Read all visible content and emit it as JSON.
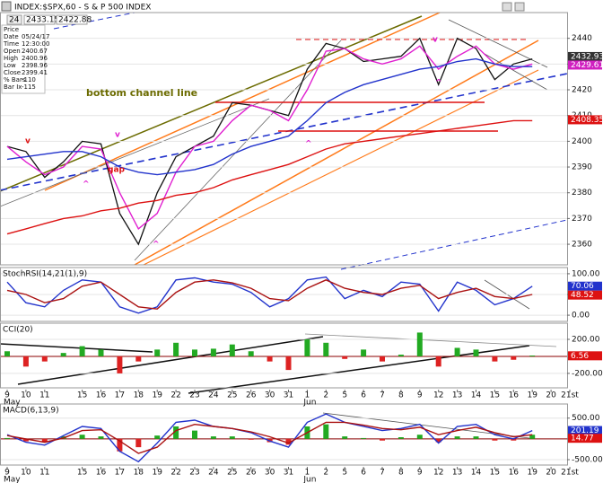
{
  "header": {
    "title": "INDEX:$SPX,60 - S & P 500 INDEX",
    "period": "24",
    "quotes": [
      2433.15,
      2422.88
    ]
  },
  "info": [
    {
      "label": "Price"
    },
    {
      "label": "Date",
      "value": "05/24/17"
    },
    {
      "label": "Time",
      "value": "12:30:00"
    },
    {
      "label": "Open",
      "value": 2400.67
    },
    {
      "label": "High",
      "value": 2400.96
    },
    {
      "label": "Low",
      "value": 2398.96
    },
    {
      "label": "Close",
      "value": 2399.41
    },
    {
      "label": "% Bars",
      "value": -110
    },
    {
      "label": "Bar Ix",
      "value": -115
    }
  ],
  "chart_data": [
    {
      "type": "line",
      "categories": [
        "9",
        "10",
        "11",
        null,
        "15",
        "16",
        "17",
        "18",
        "19",
        "22",
        "23",
        "24",
        "25",
        "26",
        "30",
        "31",
        "1",
        "2",
        "5",
        "6",
        "7",
        "8",
        "9",
        "12",
        "13",
        "14",
        "15",
        "16",
        "19",
        "20",
        "21st"
      ],
      "months": [
        "May",
        "Jun"
      ],
      "series": [
        {
          "name": "Close",
          "color": "#111111",
          "values": [
            2398,
            2396,
            2386,
            2392,
            2400,
            2399,
            2372,
            2360,
            2380,
            2394,
            2398,
            2402,
            2415,
            2414,
            2412,
            2410,
            2428,
            2438,
            2436,
            2431,
            2432,
            2433,
            2440,
            2422,
            2440,
            2436,
            2424,
            2430,
            2432,
            null,
            null
          ]
        },
        {
          "name": "Short MA",
          "color": "#e020d0",
          "values": [
            2398,
            2392,
            2387,
            2390,
            2398,
            2397,
            2380,
            2366,
            2372,
            2388,
            2398,
            2400,
            2408,
            2414,
            2412,
            2408,
            2420,
            2435,
            2436,
            2432,
            2430,
            2432,
            2437,
            2428,
            2433,
            2437,
            2430,
            2428,
            2430,
            null,
            null
          ]
        },
        {
          "name": "Mid MA",
          "color": "#2233cc",
          "values": [
            2393,
            2394,
            2395,
            2396,
            2396,
            2394,
            2390,
            2388,
            2387,
            2388,
            2389,
            2391,
            2395,
            2398,
            2400,
            2402,
            2408,
            2415,
            2419,
            2422,
            2424,
            2426,
            2428,
            2429,
            2431,
            2432,
            2430,
            2429,
            2429,
            null,
            null
          ]
        },
        {
          "name": "Long MA",
          "color": "#dd1111",
          "values": [
            2364,
            2366,
            2368,
            2370,
            2371,
            2373,
            2374,
            2376,
            2377,
            2379,
            2380,
            2382,
            2385,
            2387,
            2389,
            2391,
            2394,
            2397,
            2399,
            2400,
            2401,
            2402,
            2403,
            2404,
            2405,
            2406,
            2407,
            2408,
            2408,
            null,
            null
          ]
        }
      ],
      "ylim": [
        2352,
        2450
      ],
      "yticks": [
        2360,
        2370,
        2380,
        2390,
        2400,
        2410,
        2420,
        2430,
        2440
      ],
      "grid": true,
      "last_values": [
        {
          "value": 2432.93,
          "color": "#333333"
        },
        {
          "value": 2429.61,
          "color": "#d020c0"
        },
        {
          "value": 2408.35,
          "color": "#dd1111"
        }
      ],
      "annotations": [
        {
          "text": "bottom channel line",
          "color": "#6b6b00"
        },
        {
          "text": "gap",
          "color": "#dd1111"
        },
        {
          "text": "v",
          "color": "#dd1111"
        },
        {
          "text": "^",
          "color": "#e020d0"
        },
        {
          "text": "v",
          "color": "#e020d0"
        },
        {
          "text": "^",
          "color": "#e020d0"
        },
        {
          "text": "^",
          "color": "#e020d0"
        },
        {
          "text": "v",
          "color": "#e020d0"
        },
        {
          "text": "^",
          "color": "#e020d0"
        }
      ]
    },
    {
      "type": "line",
      "title": "StochRSI(14,21(1),9)",
      "series": [
        {
          "name": "StochRSI",
          "color": "#2233cc",
          "values": [
            80,
            30,
            20,
            60,
            85,
            80,
            20,
            5,
            20,
            85,
            90,
            80,
            75,
            55,
            20,
            40,
            85,
            92,
            40,
            60,
            45,
            80,
            75,
            10,
            80,
            60,
            25,
            40,
            70,
            null,
            null
          ]
        },
        {
          "name": "Signal",
          "color": "#aa1111",
          "values": [
            60,
            50,
            30,
            40,
            70,
            80,
            50,
            20,
            15,
            55,
            80,
            85,
            78,
            65,
            40,
            35,
            65,
            85,
            65,
            55,
            50,
            65,
            72,
            40,
            55,
            65,
            45,
            40,
            50,
            null,
            null
          ]
        }
      ],
      "ylim": [
        -15,
        115
      ],
      "yticks": [
        {
          "value": 100,
          "label": "100.00"
        },
        {
          "value": 50,
          "label": "50.00"
        },
        {
          "value": 0,
          "label": "0.00"
        }
      ],
      "grid": true,
      "last_values": [
        {
          "value": 70.06,
          "color": "#2233cc"
        },
        {
          "value": 48.52,
          "color": "#dd1111"
        }
      ]
    },
    {
      "type": "bar",
      "title": "CCI(20)",
      "values": [
        60,
        -120,
        -60,
        40,
        120,
        80,
        -200,
        -60,
        80,
        160,
        80,
        90,
        140,
        60,
        -60,
        -160,
        200,
        160,
        -30,
        80,
        -60,
        20,
        280,
        -120,
        100,
        80,
        -60,
        -40,
        10,
        null,
        null
      ],
      "up_color": "#22aa22",
      "down_color": "#dd2222",
      "ylim": [
        -370,
        390
      ],
      "yticks": [
        {
          "value": 200,
          "label": "200.00"
        },
        {
          "value": -200,
          "label": "-200.00"
        }
      ],
      "grid": true,
      "last_values": [
        {
          "value": 6.56,
          "color": "#dd1111"
        }
      ]
    },
    {
      "type": "macd",
      "title": "MACD(6,13,9)",
      "series": [
        {
          "name": "MACD",
          "color": "#2233cc",
          "values": [
            100,
            -80,
            -150,
            80,
            300,
            250,
            -300,
            -550,
            -100,
            400,
            450,
            300,
            250,
            150,
            -50,
            -200,
            400,
            600,
            400,
            300,
            200,
            250,
            350,
            -100,
            300,
            350,
            100,
            0,
            200,
            null,
            null
          ]
        },
        {
          "name": "Signal",
          "color": "#aa1111",
          "values": [
            80,
            0,
            -80,
            20,
            200,
            220,
            -50,
            -350,
            -200,
            200,
            350,
            300,
            250,
            170,
            50,
            -100,
            150,
            400,
            400,
            330,
            250,
            220,
            280,
            100,
            200,
            280,
            150,
            50,
            100,
            null,
            null
          ]
        }
      ],
      "histogram": [
        20,
        -60,
        -80,
        60,
        100,
        60,
        -300,
        -200,
        80,
        300,
        200,
        60,
        60,
        -20,
        -80,
        -140,
        300,
        350,
        60,
        20,
        -40,
        40,
        100,
        -80,
        60,
        60,
        -40,
        -40,
        100,
        null,
        null
      ],
      "up_color": "#22aa22",
      "down_color": "#dd2222",
      "ylim": [
        -630,
        840
      ],
      "yticks": [
        {
          "value": 500,
          "label": "500.00"
        },
        {
          "value": 0,
          "label": "0.00"
        },
        {
          "value": -500,
          "label": "-500.00"
        }
      ],
      "grid": true,
      "last_values": [
        {
          "value": 201.19,
          "color": "#2233cc"
        },
        {
          "value": 14.77,
          "color": "#dd1111"
        }
      ]
    }
  ]
}
